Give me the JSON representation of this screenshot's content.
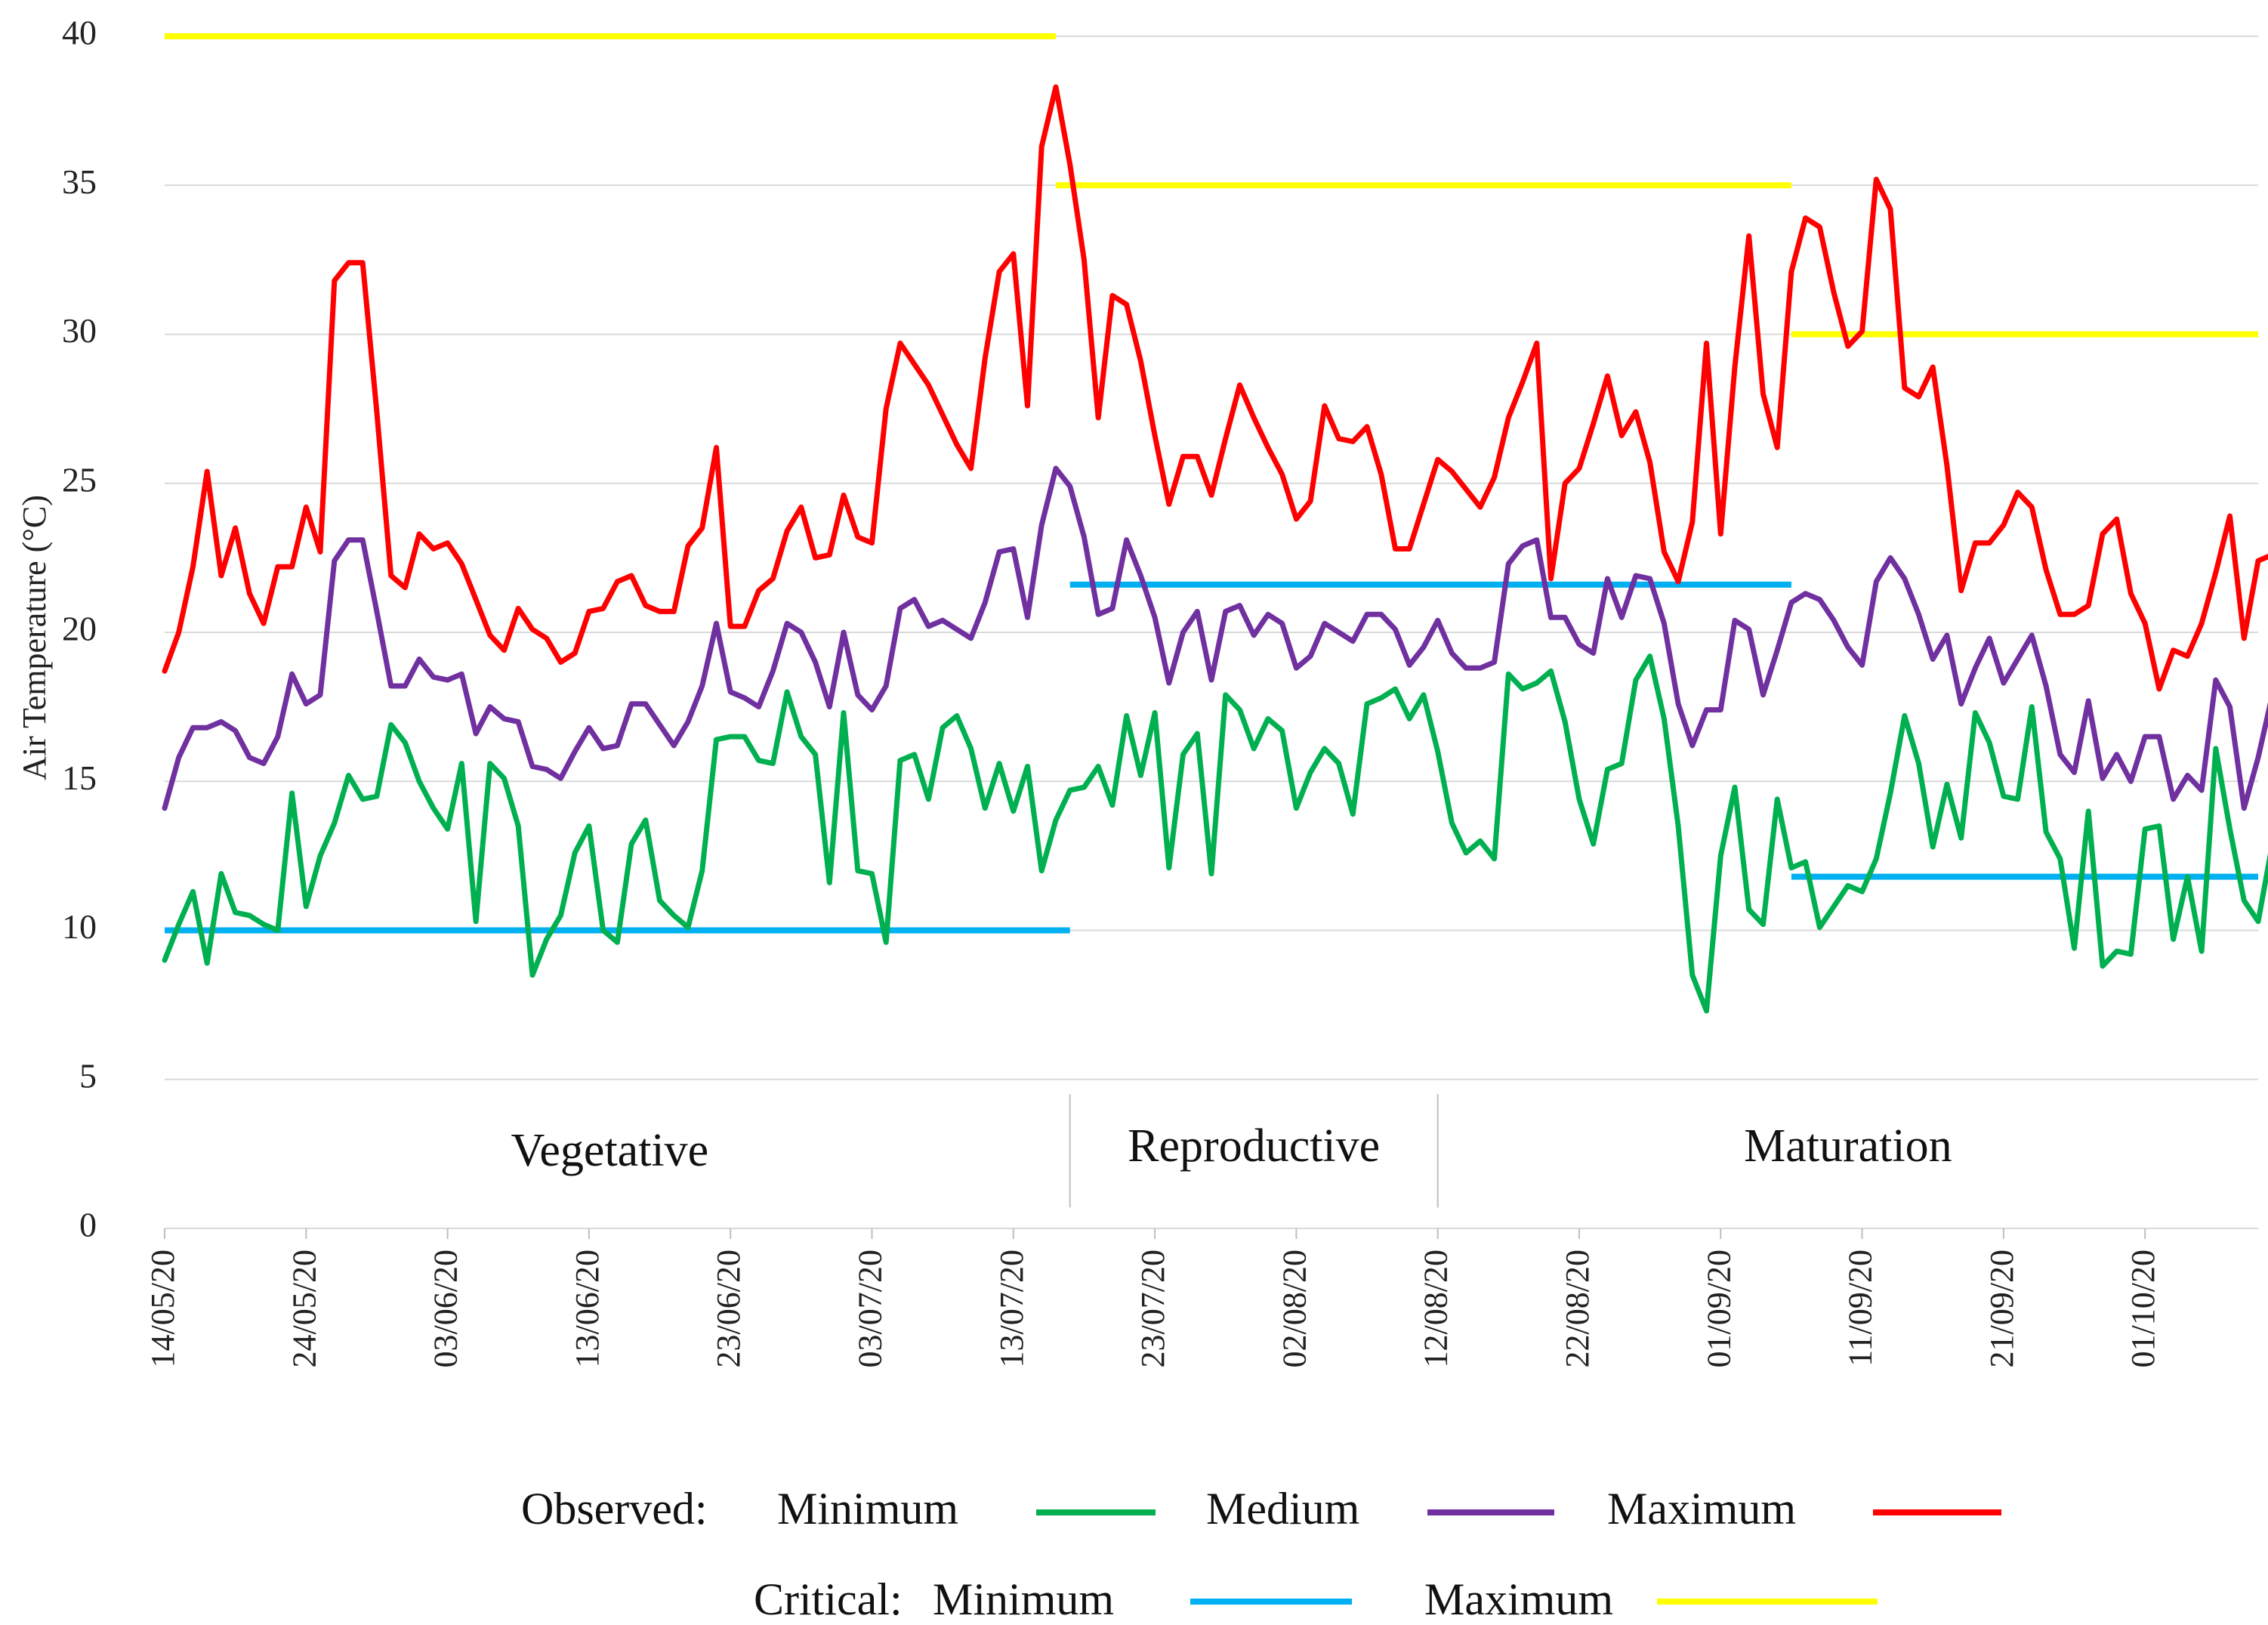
{
  "chart_data": {
    "type": "line",
    "ylabel": "Air Temperature (°C)",
    "ylim": [
      0,
      40
    ],
    "yticks": [
      0,
      5,
      10,
      15,
      20,
      25,
      30,
      35,
      40
    ],
    "grid": true,
    "start_date": "14/05/20",
    "x_range": [
      0,
      148
    ],
    "x_tick_positions": [
      0,
      10,
      20,
      30,
      40,
      50,
      60,
      70,
      80,
      90,
      100,
      110,
      120,
      130,
      140
    ],
    "x_tick_labels": [
      "14/05/20",
      "24/05/20",
      "03/06/20",
      "13/06/20",
      "23/06/20",
      "03/07/20",
      "13/07/20",
      "23/07/20",
      "02/08/20",
      "12/08/20",
      "22/08/20",
      "01/09/20",
      "11/09/20",
      "21/09/20",
      "01/10/20"
    ],
    "phases": [
      {
        "name": "Vegetative",
        "start": 0,
        "end": 64
      },
      {
        "name": "Reproductive",
        "start": 64,
        "end": 90
      },
      {
        "name": "Maturation",
        "start": 90,
        "end": 148
      }
    ],
    "phase_boundaries": [
      64,
      90
    ],
    "series": [
      {
        "name": "Maximum",
        "group": "Observed",
        "color": "#ff0000",
        "values": [
          18.7,
          20.0,
          22.2,
          25.4,
          21.9,
          23.5,
          21.3,
          20.3,
          22.2,
          22.2,
          24.2,
          22.7,
          31.8,
          32.4,
          32.4,
          27.4,
          21.9,
          21.5,
          23.3,
          22.8,
          23.0,
          22.3,
          21.1,
          19.9,
          19.4,
          20.8,
          20.1,
          19.8,
          19.0,
          19.3,
          20.7,
          20.8,
          21.7,
          21.9,
          20.9,
          20.7,
          20.7,
          22.9,
          23.5,
          26.2,
          20.2,
          20.2,
          21.4,
          21.8,
          23.4,
          24.2,
          22.5,
          22.6,
          24.6,
          23.2,
          23.0,
          27.5,
          29.7,
          29.0,
          28.3,
          27.3,
          26.3,
          25.5,
          29.2,
          32.1,
          32.7,
          27.6,
          36.3,
          38.3,
          35.7,
          32.5,
          27.2,
          31.3,
          31.0,
          29.1,
          26.6,
          24.3,
          25.9,
          25.9,
          24.6,
          26.5,
          28.3,
          27.2,
          26.2,
          25.3,
          23.8,
          24.4,
          27.6,
          26.5,
          26.4,
          26.9,
          25.3,
          22.8,
          22.8,
          24.3,
          25.8,
          25.4,
          24.8,
          24.2,
          25.2,
          27.2,
          28.4,
          29.7,
          21.8,
          25.0,
          25.5,
          27.0,
          28.6,
          26.6,
          27.4,
          25.7,
          22.7,
          21.7,
          23.7,
          29.7,
          23.3,
          28.9,
          33.3,
          28.0,
          26.2,
          32.1,
          33.9,
          33.6,
          31.4,
          29.6,
          30.1,
          35.2,
          34.2,
          28.2,
          27.9,
          28.9,
          25.6,
          21.4,
          23.0,
          23.0,
          23.6,
          24.7,
          24.2,
          22.1,
          20.6,
          20.6,
          20.9,
          23.3,
          23.8,
          21.3,
          20.3,
          18.1,
          19.4,
          19.2,
          20.3,
          22.0,
          23.9,
          19.8,
          22.4,
          22.6
        ]
      },
      {
        "name": "Medium",
        "group": "Observed",
        "color": "#7030a0",
        "values": [
          14.1,
          15.8,
          16.8,
          16.8,
          17.0,
          16.7,
          15.8,
          15.6,
          16.5,
          18.6,
          17.6,
          17.9,
          22.4,
          23.1,
          23.1,
          20.7,
          18.2,
          18.2,
          19.1,
          18.5,
          18.4,
          18.6,
          16.6,
          17.5,
          17.1,
          17.0,
          15.5,
          15.4,
          15.1,
          16.0,
          16.8,
          16.1,
          16.2,
          17.6,
          17.6,
          16.9,
          16.2,
          17.0,
          18.2,
          20.3,
          18.0,
          17.8,
          17.5,
          18.7,
          20.3,
          20.0,
          19.0,
          17.5,
          20.0,
          17.9,
          17.4,
          18.2,
          20.8,
          21.1,
          20.2,
          20.4,
          20.1,
          19.8,
          21.0,
          22.7,
          22.8,
          20.5,
          23.6,
          25.5,
          24.9,
          23.2,
          20.6,
          20.8,
          23.1,
          21.9,
          20.5,
          18.3,
          20.0,
          20.7,
          18.4,
          20.7,
          20.9,
          19.9,
          20.6,
          20.3,
          18.8,
          19.2,
          20.3,
          20.0,
          19.7,
          20.6,
          20.6,
          20.1,
          18.9,
          19.5,
          20.4,
          19.3,
          18.8,
          18.8,
          19.0,
          22.3,
          22.9,
          23.1,
          20.5,
          20.5,
          19.6,
          19.3,
          21.8,
          20.5,
          21.9,
          21.8,
          20.3,
          17.6,
          16.2,
          17.4,
          17.4,
          20.4,
          20.1,
          17.9,
          19.4,
          21.0,
          21.3,
          21.1,
          20.4,
          19.5,
          18.9,
          21.7,
          22.5,
          21.8,
          20.6,
          19.1,
          19.9,
          17.6,
          18.8,
          19.8,
          18.3,
          19.1,
          19.9,
          18.2,
          15.9,
          15.3,
          17.7,
          15.1,
          15.9,
          15.0,
          16.5,
          16.5,
          14.4,
          15.2,
          14.7,
          18.4,
          17.5,
          14.1,
          15.8,
          17.9
        ]
      },
      {
        "name": "Minimum",
        "group": "Observed",
        "color": "#00b050",
        "values": [
          9.0,
          10.2,
          11.3,
          8.9,
          11.9,
          10.6,
          10.5,
          10.2,
          10.0,
          14.6,
          10.8,
          12.5,
          13.6,
          15.2,
          14.4,
          14.5,
          16.9,
          16.3,
          15.0,
          14.1,
          13.4,
          15.6,
          10.3,
          15.6,
          15.1,
          13.5,
          8.5,
          9.7,
          10.5,
          12.6,
          13.5,
          10.0,
          9.6,
          12.9,
          13.7,
          11.0,
          10.5,
          10.1,
          12.0,
          16.4,
          16.5,
          16.5,
          15.7,
          15.6,
          18.0,
          16.5,
          15.9,
          11.6,
          17.3,
          12.0,
          11.9,
          9.6,
          15.7,
          15.9,
          14.4,
          16.8,
          17.2,
          16.1,
          14.1,
          15.6,
          14.0,
          15.5,
          12.0,
          13.7,
          14.7,
          14.8,
          15.5,
          14.2,
          17.2,
          15.2,
          17.3,
          12.1,
          15.9,
          16.6,
          11.9,
          17.9,
          17.4,
          16.1,
          17.1,
          16.7,
          14.1,
          15.3,
          16.1,
          15.6,
          13.9,
          17.6,
          17.8,
          18.1,
          17.1,
          17.9,
          16.0,
          13.6,
          12.6,
          13.0,
          12.4,
          18.6,
          18.1,
          18.3,
          18.7,
          17.0,
          14.4,
          12.9,
          15.4,
          15.6,
          18.4,
          19.2,
          17.1,
          13.5,
          8.5,
          7.3,
          12.5,
          14.8,
          10.7,
          10.2,
          14.4,
          12.1,
          12.3,
          10.1,
          10.8,
          11.5,
          11.3,
          12.4,
          14.6,
          17.2,
          15.6,
          12.8,
          14.9,
          13.1,
          17.3,
          16.3,
          14.5,
          14.4,
          17.5,
          13.3,
          12.4,
          9.4,
          14.0,
          8.8,
          9.3,
          9.2,
          13.4,
          13.5,
          9.7,
          11.8,
          9.3,
          16.1,
          13.4,
          11.0,
          10.3,
          12.9
        ]
      }
    ],
    "critical": [
      {
        "name": "Maximum",
        "group": "Critical",
        "color": "#ffff00",
        "segments": [
          {
            "x_start": 0,
            "x_end": 63,
            "value": 40
          },
          {
            "x_start": 63,
            "x_end": 115,
            "value": 35
          },
          {
            "x_start": 115,
            "x_end": 148,
            "value": 30
          }
        ]
      },
      {
        "name": "Minimum",
        "group": "Critical",
        "color": "#00b0f0",
        "segments": [
          {
            "x_start": 0,
            "x_end": 64,
            "value": 10
          },
          {
            "x_start": 64,
            "x_end": 115,
            "value": 21.6
          },
          {
            "x_start": 115,
            "x_end": 148,
            "value": 11.8
          }
        ]
      }
    ],
    "legend": {
      "observed_label": "Observed:",
      "critical_label": "Critical:",
      "observed_items": [
        "Minimum",
        "Medium",
        "Maximum"
      ],
      "critical_items": [
        "Minimum",
        "Maximum"
      ]
    }
  }
}
